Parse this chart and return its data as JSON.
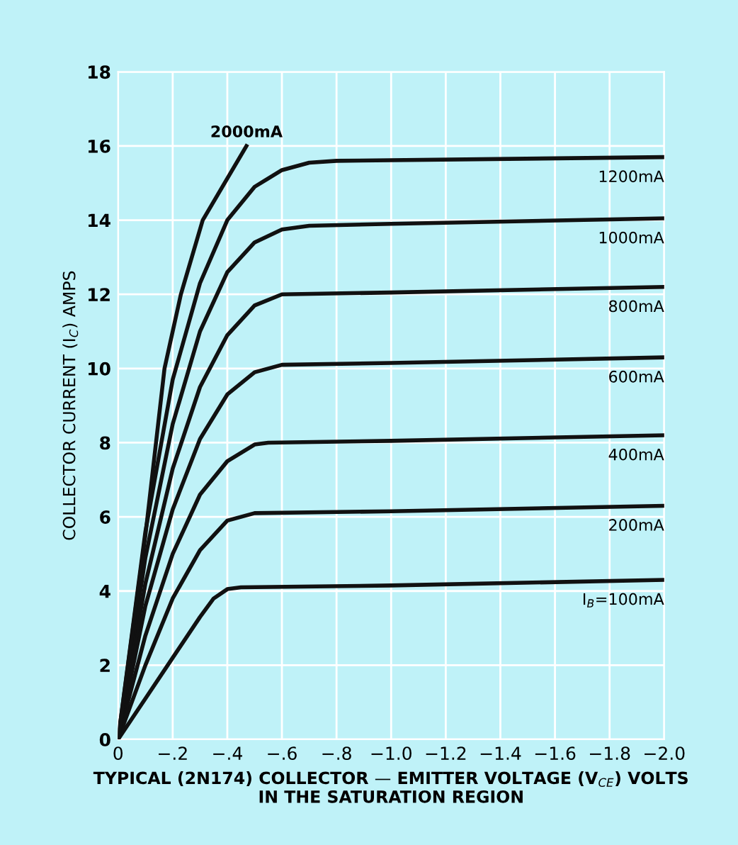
{
  "chart_data": {
    "type": "line",
    "xlabel": "TYPICAL (2N174) COLLECTOR — EMITTER VOLTAGE (V$_{CE}$) VOLTS\nIN THE SATURATION REGION",
    "ylabel": "COLLECTOR CURRENT (I$_{C}$) AMPS",
    "xlim": [
      0,
      -2.0
    ],
    "xticks": [
      0,
      {
        "value": -0.2,
        "label": "−.2"
      },
      {
        "value": -0.4,
        "label": "−.4"
      },
      {
        "value": -0.6,
        "label": "−.6"
      },
      {
        "value": -0.8,
        "label": "−.8"
      },
      {
        "value": -1.0,
        "label": "−1.0"
      },
      {
        "value": -1.2,
        "label": "−1.2"
      },
      {
        "value": -1.4,
        "label": "−1.4"
      },
      {
        "value": -1.6,
        "label": "−1.6"
      },
      {
        "value": -1.8,
        "label": "−1.8"
      },
      {
        "value": -2.0,
        "label": "−2.0"
      }
    ],
    "ylim": [
      0,
      18
    ],
    "yticks": [
      0,
      2,
      4,
      6,
      8,
      10,
      12,
      14,
      16,
      18
    ],
    "grid": true,
    "legend": false,
    "marker": "none",
    "line_style": "solid",
    "series": [
      {
        "name": "I$_{B}$=100mA",
        "color": "#111111",
        "x": [
          0,
          -0.1,
          -0.2,
          -0.3,
          -0.35,
          -0.4,
          -0.45,
          -1.0,
          -2.0
        ],
        "values": [
          0,
          1.1,
          2.2,
          3.3,
          3.8,
          4.05,
          4.1,
          4.15,
          4.3
        ]
      },
      {
        "name": "200mA",
        "color": "#111111",
        "x": [
          0,
          -0.1,
          -0.2,
          -0.3,
          -0.4,
          -0.5,
          -1.0,
          -2.0
        ],
        "values": [
          0,
          2.0,
          3.8,
          5.1,
          5.9,
          6.1,
          6.15,
          6.3
        ]
      },
      {
        "name": "400mA",
        "color": "#111111",
        "x": [
          0,
          -0.1,
          -0.2,
          -0.3,
          -0.4,
          -0.5,
          -0.55,
          -1.0,
          -2.0
        ],
        "values": [
          0,
          2.8,
          5.0,
          6.6,
          7.5,
          7.95,
          8.0,
          8.05,
          8.2
        ]
      },
      {
        "name": "600mA",
        "color": "#111111",
        "x": [
          0,
          -0.1,
          -0.2,
          -0.3,
          -0.4,
          -0.5,
          -0.6,
          -1.0,
          -2.0
        ],
        "values": [
          0,
          3.6,
          6.2,
          8.1,
          9.3,
          9.9,
          10.1,
          10.15,
          10.3
        ]
      },
      {
        "name": "800mA",
        "color": "#111111",
        "x": [
          0,
          -0.1,
          -0.2,
          -0.3,
          -0.4,
          -0.5,
          -0.6,
          -1.0,
          -2.0
        ],
        "values": [
          0,
          4.2,
          7.3,
          9.5,
          10.9,
          11.7,
          12.0,
          12.05,
          12.2
        ]
      },
      {
        "name": "1000mA",
        "color": "#111111",
        "x": [
          0,
          -0.1,
          -0.2,
          -0.3,
          -0.4,
          -0.5,
          -0.6,
          -0.7,
          -1.0,
          -2.0
        ],
        "values": [
          0,
          4.9,
          8.5,
          11.0,
          12.6,
          13.4,
          13.75,
          13.85,
          13.9,
          14.05
        ]
      },
      {
        "name": "1200mA",
        "color": "#111111",
        "x": [
          0,
          -0.1,
          -0.2,
          -0.3,
          -0.4,
          -0.5,
          -0.6,
          -0.7,
          -0.8,
          -2.0
        ],
        "values": [
          0,
          5.6,
          9.7,
          12.3,
          14.0,
          14.9,
          15.35,
          15.55,
          15.6,
          15.7
        ]
      },
      {
        "name": "2000mA",
        "color": "#111111",
        "x": [
          0,
          -0.1,
          -0.17,
          -0.23,
          -0.31,
          -0.47
        ],
        "values": [
          0,
          5.5,
          10,
          12,
          14,
          16
        ]
      }
    ]
  }
}
